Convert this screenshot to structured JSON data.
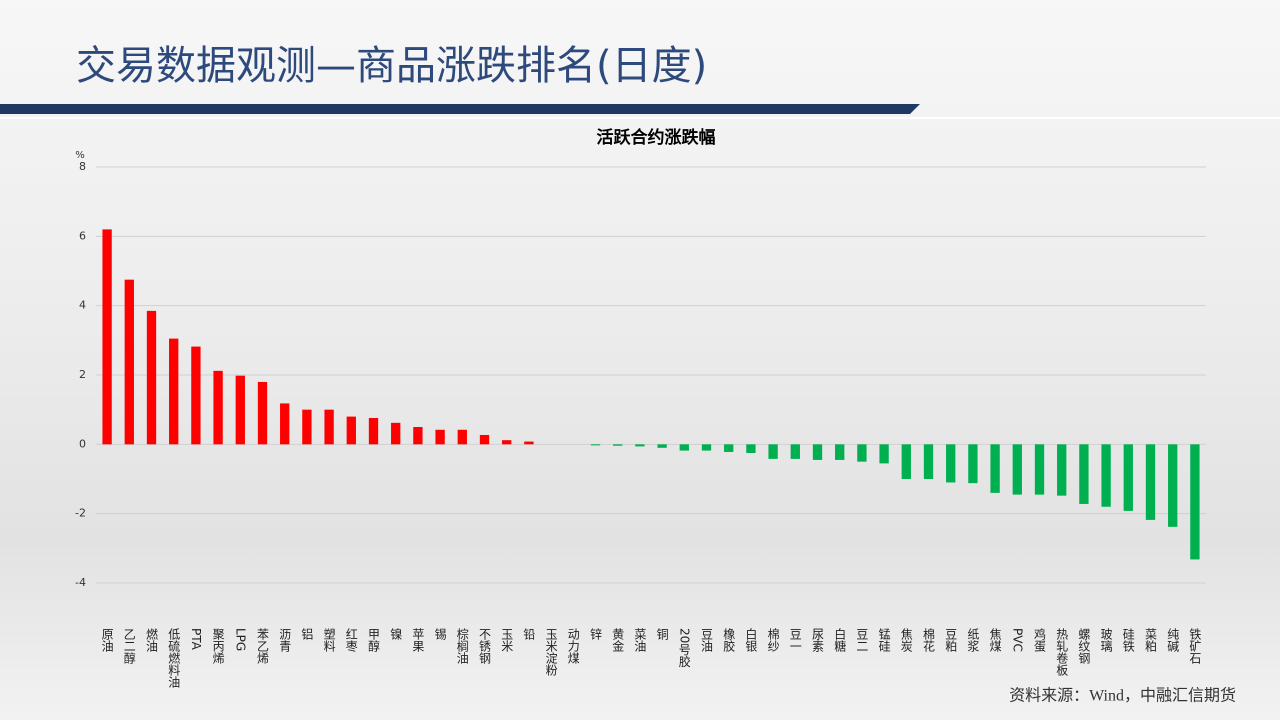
{
  "header": {
    "title": "交易数据观测—商品涨跌排名(日度)"
  },
  "chart_data": {
    "type": "bar",
    "title": "活跃合约涨跌幅",
    "y_unit": "%",
    "categories": [
      "原油",
      "乙二醇",
      "燃油",
      "低硫燃料油",
      "PTA",
      "聚丙烯",
      "LPG",
      "苯乙烯",
      "沥青",
      "铝",
      "塑料",
      "红枣",
      "甲醇",
      "镍",
      "苹果",
      "锡",
      "棕榈油",
      "不锈钢",
      "玉米",
      "铅",
      "玉米淀粉",
      "动力煤",
      "锌",
      "黄金",
      "菜油",
      "铜",
      "20号胶",
      "豆油",
      "橡胶",
      "白银",
      "棉纱",
      "豆一",
      "尿素",
      "白糖",
      "豆二",
      "锰硅",
      "焦炭",
      "棉花",
      "豆粕",
      "纸浆",
      "焦煤",
      "PVC",
      "鸡蛋",
      "热轧卷板",
      "螺纹钢",
      "玻璃",
      "硅铁",
      "菜粕",
      "纯碱",
      "铁矿石"
    ],
    "values": [
      6.2,
      4.75,
      3.85,
      3.05,
      2.82,
      2.12,
      1.98,
      1.8,
      1.18,
      1.0,
      1.0,
      0.8,
      0.76,
      0.62,
      0.5,
      0.42,
      0.42,
      0.27,
      0.12,
      0.08,
      0,
      0,
      -0.03,
      -0.04,
      -0.06,
      -0.1,
      -0.18,
      -0.18,
      -0.22,
      -0.25,
      -0.42,
      -0.42,
      -0.45,
      -0.45,
      -0.5,
      -0.55,
      -1.0,
      -1.0,
      -1.1,
      -1.12,
      -1.4,
      -1.45,
      -1.45,
      -1.48,
      -1.72,
      -1.8,
      -1.92,
      -2.18,
      -2.38,
      -3.32
    ],
    "positive_color": "#ff0000",
    "negative_color": "#00b050",
    "ylim": [
      -4,
      8
    ],
    "yticks": [
      -4,
      -2,
      0,
      2,
      4,
      6,
      8
    ],
    "grid": true
  },
  "footer": {
    "source": "资料来源：Wind，中融汇信期货"
  }
}
